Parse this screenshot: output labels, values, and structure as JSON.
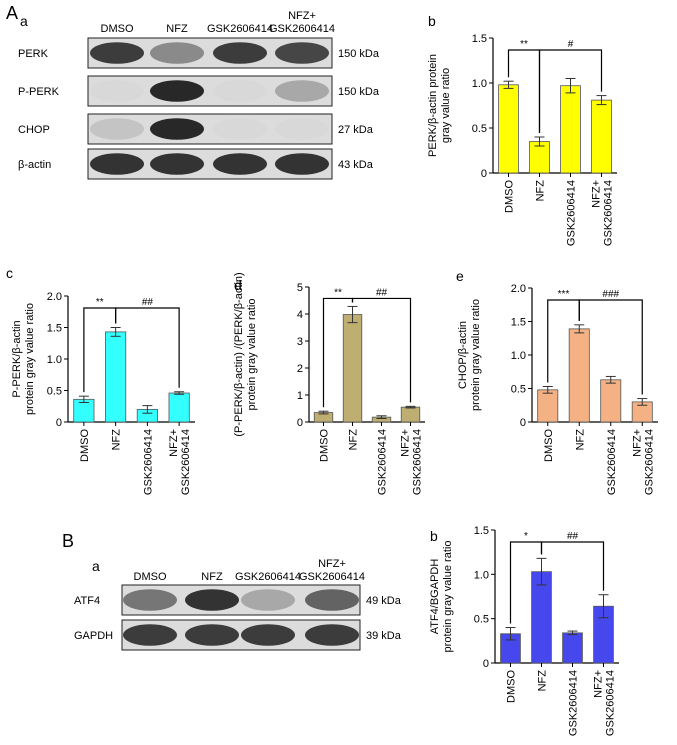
{
  "figure": {
    "panel_A": "A",
    "panel_B": "B",
    "sub_a": "a",
    "sub_b": "b",
    "sub_c": "c",
    "sub_d": "d",
    "sub_e": "e",
    "sub_Ba": "a",
    "sub_Bb": "b"
  },
  "blot_A": {
    "lanes": [
      "DMSO",
      "NFZ",
      "GSK2606414",
      "NFZ+\nGSK2606414"
    ],
    "rows": [
      {
        "label": "PERK",
        "kda": "150 kDa",
        "intensity": [
          0.85,
          0.45,
          0.85,
          0.8
        ]
      },
      {
        "label": "P-PERK",
        "kda": "150 kDa",
        "intensity": [
          0.05,
          0.95,
          0.05,
          0.3
        ]
      },
      {
        "label": "CHOP",
        "kda": "27 kDa",
        "intensity": [
          0.15,
          0.95,
          0.05,
          0.05
        ]
      },
      {
        "label": "β-actin",
        "kda": "43 kDa",
        "intensity": [
          0.9,
          0.9,
          0.9,
          0.9
        ]
      }
    ]
  },
  "blot_B": {
    "lanes": [
      "DMSO",
      "NFZ",
      "GSK2606414",
      "NFZ+\nGSK2606414"
    ],
    "rows": [
      {
        "label": "ATF4",
        "kda": "49 kDa",
        "intensity": [
          0.55,
          0.9,
          0.3,
          0.65
        ]
      },
      {
        "label": "GAPDH",
        "kda": "39 kDa",
        "intensity": [
          0.85,
          0.85,
          0.85,
          0.85
        ]
      }
    ]
  },
  "chart_data": [
    {
      "id": "A-b",
      "type": "bar",
      "categories": [
        "DMSO",
        "NFZ",
        "GSK2606414",
        "NFZ+\nGSK2606414"
      ],
      "values": [
        0.98,
        0.35,
        0.97,
        0.81
      ],
      "errors": [
        0.04,
        0.05,
        0.08,
        0.05
      ],
      "ylabel": "PERK/β-actin protein\ngray value ratio",
      "ylim": [
        0,
        1.5
      ],
      "ticks": [
        0,
        0.5,
        1.0,
        1.5
      ],
      "tick_labels": [
        "0",
        "0.5",
        "1.0",
        "1.5"
      ],
      "color": "#ffff00",
      "brackets": [
        {
          "from": 0,
          "to": 1,
          "label": "**"
        },
        {
          "from": 1,
          "to": 3,
          "label": "#"
        }
      ]
    },
    {
      "id": "A-c",
      "type": "bar",
      "categories": [
        "DMSO",
        "NFZ",
        "GSK2606414",
        "NFZ+\nGSK2606414"
      ],
      "values": [
        0.36,
        1.43,
        0.2,
        0.46
      ],
      "errors": [
        0.05,
        0.07,
        0.06,
        0.02
      ],
      "ylabel": "P-PERK/β-actin\nprotein gray value ratio",
      "ylim": [
        0,
        2.0
      ],
      "ticks": [
        0,
        0.5,
        1.0,
        1.5,
        2.0
      ],
      "tick_labels": [
        "0",
        "0.5",
        "1.0",
        "1.5",
        "2.0"
      ],
      "color": "#33ffff",
      "brackets": [
        {
          "from": 0,
          "to": 1,
          "label": "**"
        },
        {
          "from": 1,
          "to": 3,
          "label": "##"
        }
      ]
    },
    {
      "id": "A-d",
      "type": "bar",
      "categories": [
        "DMSO",
        "NFZ",
        "GSK2606414",
        "NFZ+\nGSK2606414"
      ],
      "values": [
        0.35,
        3.98,
        0.18,
        0.55
      ],
      "errors": [
        0.05,
        0.3,
        0.05,
        0.03
      ],
      "ylabel": "(P-PERK/β-actin) /(PERK/β-actin)\nprotein gray value ratio",
      "ylim": [
        0,
        5
      ],
      "ticks": [
        0,
        1,
        2,
        3,
        4,
        5
      ],
      "tick_labels": [
        "0",
        "1",
        "2",
        "3",
        "4",
        "5"
      ],
      "color": "#bfae72",
      "brackets": [
        {
          "from": 0,
          "to": 1,
          "label": "**"
        },
        {
          "from": 1,
          "to": 3,
          "label": "##"
        }
      ]
    },
    {
      "id": "A-e",
      "type": "bar",
      "categories": [
        "DMSO",
        "NFZ",
        "GSK2606414",
        "NFZ+\nGSK2606414"
      ],
      "values": [
        0.48,
        1.39,
        0.63,
        0.3
      ],
      "errors": [
        0.05,
        0.06,
        0.05,
        0.05
      ],
      "ylabel": "CHOP/β-actin\nprotein gray value ratio",
      "ylim": [
        0,
        2.0
      ],
      "ticks": [
        0,
        0.5,
        1.0,
        1.5,
        2.0
      ],
      "tick_labels": [
        "0",
        "0.5",
        "1.0",
        "1.5",
        "2.0"
      ],
      "color": "#f4b183",
      "brackets": [
        {
          "from": 0,
          "to": 1,
          "label": "***"
        },
        {
          "from": 1,
          "to": 3,
          "label": "###"
        }
      ]
    },
    {
      "id": "B-b",
      "type": "bar",
      "categories": [
        "DMSO",
        "NFZ",
        "GSK2606414",
        "NFZ+\nGSK2606414"
      ],
      "values": [
        0.33,
        1.03,
        0.34,
        0.64
      ],
      "errors": [
        0.07,
        0.15,
        0.02,
        0.13
      ],
      "ylabel": "ATF4/BGAPDH\nprotein gray value ratio",
      "ylim": [
        0,
        1.5
      ],
      "ticks": [
        0,
        0.5,
        1.0,
        1.5
      ],
      "tick_labels": [
        "0",
        "0.5",
        "1.0",
        "1.5"
      ],
      "color": "#4747ee",
      "brackets": [
        {
          "from": 0,
          "to": 1,
          "label": "*"
        },
        {
          "from": 1,
          "to": 3,
          "label": "##"
        }
      ]
    }
  ]
}
